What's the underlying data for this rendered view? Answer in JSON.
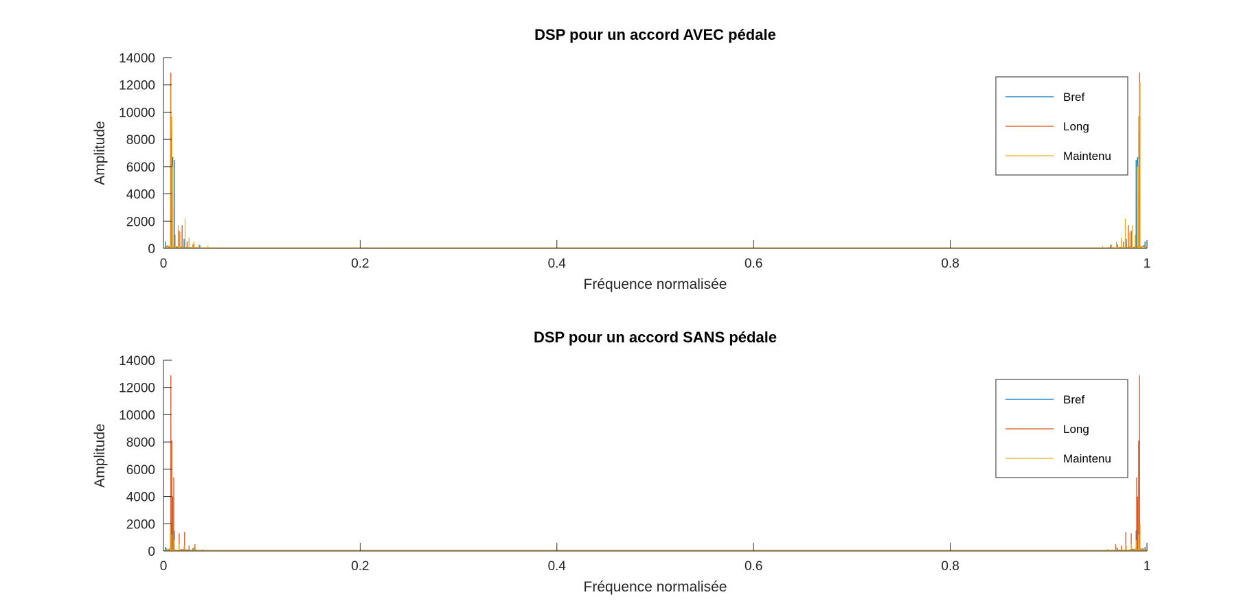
{
  "chart_data": [
    {
      "type": "line",
      "title": "DSP pour un accord AVEC pédale",
      "xlabel": "Fréquence normalisée",
      "ylabel": "Amplitude",
      "xlim": [
        0,
        1
      ],
      "ylim": [
        0,
        14000
      ],
      "xticks": [
        "0",
        "0.2",
        "0.4",
        "0.6",
        "0.8",
        "1"
      ],
      "yticks": [
        "0",
        "2000",
        "4000",
        "6000",
        "8000",
        "10000",
        "12000",
        "14000"
      ],
      "legend": {
        "location": "top-right",
        "entries": [
          "Bref",
          "Long",
          "Maintenu"
        ]
      },
      "series": [
        {
          "name": "Bref",
          "color": "#0072BD",
          "peaks": [
            [
              0.002,
              500
            ],
            [
              0.008,
              8500
            ],
            [
              0.0095,
              6700
            ],
            [
              0.011,
              6500
            ],
            [
              0.016,
              1200
            ],
            [
              0.021,
              700
            ],
            [
              0.026,
              600
            ],
            [
              0.031,
              400
            ],
            [
              0.037,
              250
            ]
          ]
        },
        {
          "name": "Long",
          "color": "#D95319",
          "peaks": [
            [
              0.0075,
              12900
            ],
            [
              0.0085,
              4000
            ],
            [
              0.0095,
              3000
            ],
            [
              0.016,
              1300
            ],
            [
              0.019,
              1700
            ],
            [
              0.024,
              500
            ],
            [
              0.03,
              300
            ]
          ]
        },
        {
          "name": "Maintenu",
          "color": "#EDB120",
          "peaks": [
            [
              0.007,
              12200
            ],
            [
              0.0085,
              9700
            ],
            [
              0.0095,
              6000
            ],
            [
              0.012,
              1000
            ],
            [
              0.015,
              1700
            ],
            [
              0.0175,
              1200
            ],
            [
              0.022,
              2200
            ],
            [
              0.026,
              800
            ],
            [
              0.031,
              500
            ],
            [
              0.036,
              300
            ],
            [
              0.045,
              200
            ]
          ]
        }
      ]
    },
    {
      "type": "line",
      "title": "DSP pour un accord SANS pédale",
      "xlabel": "Fréquence normalisée",
      "ylabel": "Amplitude",
      "xlim": [
        0,
        1
      ],
      "ylim": [
        0,
        14000
      ],
      "xticks": [
        "0",
        "0.2",
        "0.4",
        "0.6",
        "0.8",
        "1"
      ],
      "yticks": [
        "0",
        "2000",
        "4000",
        "6000",
        "8000",
        "10000",
        "12000",
        "14000"
      ],
      "legend": {
        "location": "top-right",
        "entries": [
          "Bref",
          "Long",
          "Maintenu"
        ]
      },
      "series": [
        {
          "name": "Bref",
          "color": "#0072BD",
          "peaks": [
            [
              0.002,
              300
            ],
            [
              0.008,
              2000
            ],
            [
              0.011,
              1500
            ],
            [
              0.016,
              400
            ],
            [
              0.021,
              300
            ],
            [
              0.03,
              200
            ]
          ]
        },
        {
          "name": "Long",
          "color": "#D95319",
          "peaks": [
            [
              0.0075,
              12900
            ],
            [
              0.0085,
              8100
            ],
            [
              0.0095,
              4000
            ],
            [
              0.0105,
              5400
            ],
            [
              0.016,
              1300
            ],
            [
              0.0215,
              1400
            ],
            [
              0.026,
              400
            ],
            [
              0.032,
              500
            ]
          ]
        },
        {
          "name": "Maintenu",
          "color": "#EDB120",
          "peaks": [
            [
              0.007,
              2000
            ],
            [
              0.0085,
              1200
            ],
            [
              0.011,
              800
            ],
            [
              0.016,
              500
            ],
            [
              0.021,
              400
            ],
            [
              0.031,
              300
            ],
            [
              0.04,
              150
            ]
          ]
        }
      ]
    }
  ]
}
